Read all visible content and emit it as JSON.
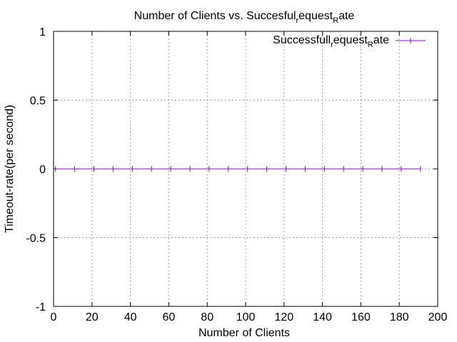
{
  "chart_data": {
    "type": "line",
    "title_parts": {
      "main": "Number of Clients vs. Succesful",
      "sub1": "r",
      "mid": "equest",
      "sub2": "R",
      "end": "ate"
    },
    "xlabel": "Number of Clients",
    "ylabel": "Timeout-rate(per second)",
    "xlim": [
      0,
      200
    ],
    "ylim": [
      -1,
      1
    ],
    "x_ticks": [
      "0",
      "20",
      "40",
      "60",
      "80",
      "100",
      "120",
      "140",
      "160",
      "180",
      "200"
    ],
    "y_ticks": [
      "1",
      "0.5",
      "0",
      "-0.5",
      "-1"
    ],
    "grid": true,
    "legend_position": "top-right",
    "series": [
      {
        "name_parts": {
          "a": "Successfull",
          "sub1": "r",
          "b": "equest",
          "sub2": "R",
          "c": "ate"
        },
        "color": "#9400d3",
        "x": [
          1,
          11,
          21,
          31,
          41,
          51,
          61,
          71,
          81,
          91,
          101,
          111,
          121,
          131,
          141,
          151,
          161,
          171,
          181,
          191
        ],
        "y": [
          0,
          0,
          0,
          0,
          0,
          0,
          0,
          0,
          0,
          0,
          0,
          0,
          0,
          0,
          0,
          0,
          0,
          0,
          0,
          0
        ]
      }
    ]
  }
}
